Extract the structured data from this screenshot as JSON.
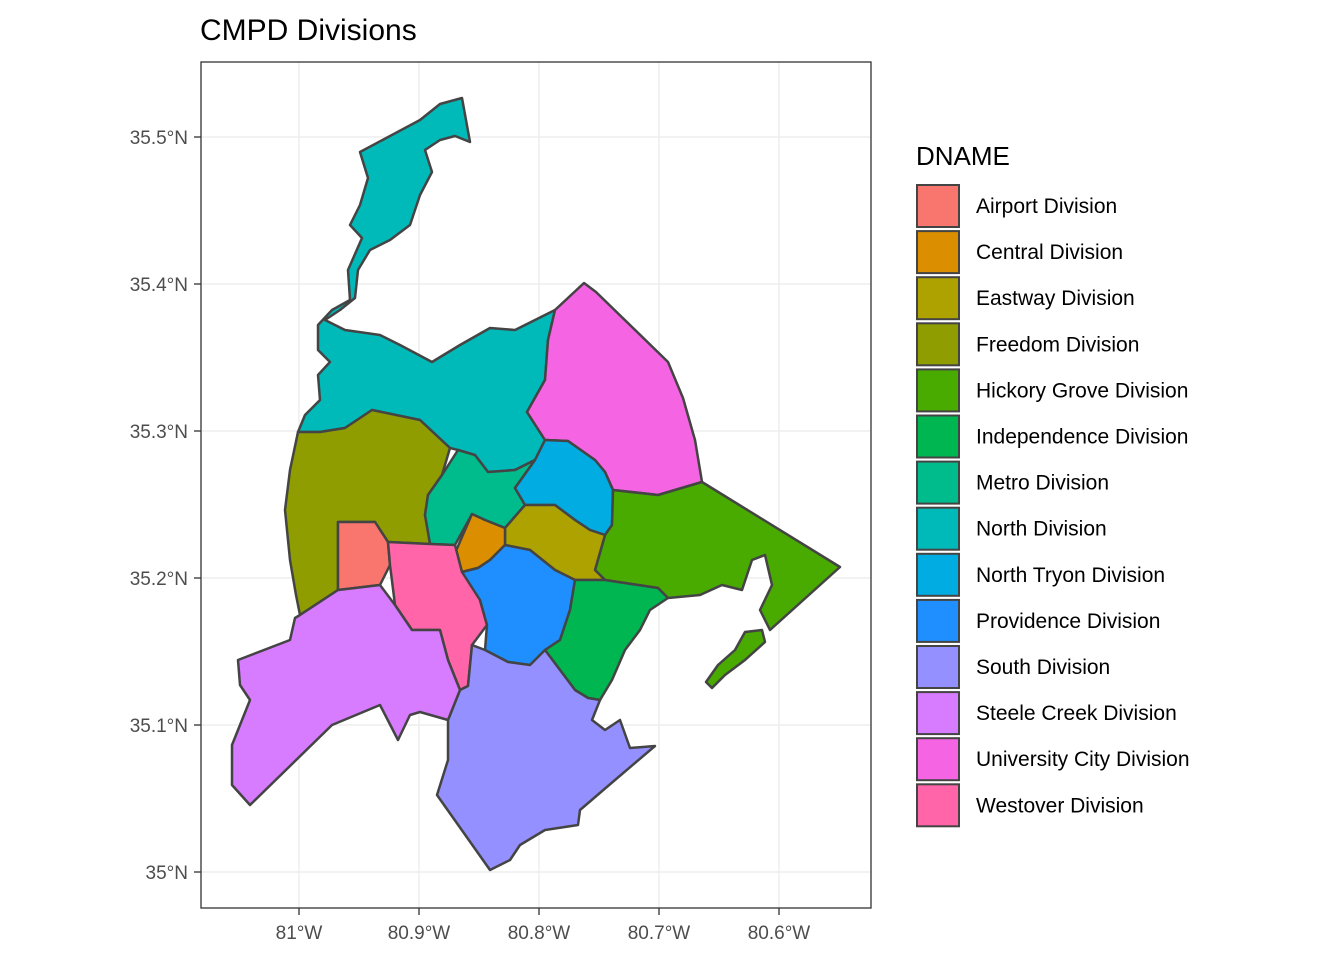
{
  "title": "CMPD Divisions",
  "legend": {
    "title": "DNAME",
    "items": [
      {
        "label": "Airport Division",
        "color": "#F8766D"
      },
      {
        "label": "Central Division",
        "color": "#DB8E00"
      },
      {
        "label": "Eastway Division",
        "color": "#AEA200"
      },
      {
        "label": "Freedom Division",
        "color": "#8F9D00"
      },
      {
        "label": "Hickory Grove Division",
        "color": "#49AA00"
      },
      {
        "label": "Independence Division",
        "color": "#00B650"
      },
      {
        "label": "Metro Division",
        "color": "#00BC8C"
      },
      {
        "label": "North Division",
        "color": "#00BAB9"
      },
      {
        "label": "North Tryon Division",
        "color": "#00ACE2"
      },
      {
        "label": "Providence Division",
        "color": "#1F8FFF"
      },
      {
        "label": "South Division",
        "color": "#9590FF"
      },
      {
        "label": "Steele Creek Division",
        "color": "#D77BFF"
      },
      {
        "label": "University City Division",
        "color": "#F564E3"
      },
      {
        "label": "Westover Division",
        "color": "#FF65A8"
      }
    ]
  },
  "axes": {
    "x_ticks": [
      "81°W",
      "80.9°W",
      "80.8°W",
      "80.7°W",
      "80.6°W"
    ],
    "y_ticks": [
      "35.5°N",
      "35.4°N",
      "35.3°N",
      "35.2°N",
      "35.1°N",
      "35°N"
    ]
  },
  "style": {
    "outline": "#444444",
    "grid": "#ebebeb",
    "panel_border": "#333333"
  }
}
